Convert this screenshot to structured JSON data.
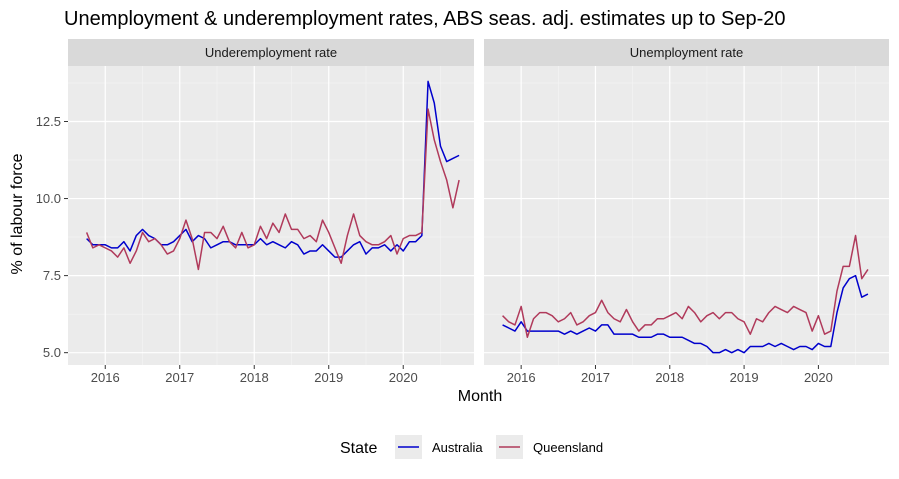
{
  "title": "Unemployment & underemployment rates, ABS seas. adj. estimates up to Sep-20",
  "chart_data": {
    "type": "line",
    "xlabel": "Month",
    "ylabel": "% of labour force",
    "x_ticks": [
      "2016",
      "2017",
      "2018",
      "2019",
      "2020"
    ],
    "y_ticks": [
      "5.0",
      "7.5",
      "10.0",
      "12.5"
    ],
    "ylim": [
      4.6,
      14.3
    ],
    "xlim": [
      2015.5,
      2020.95
    ],
    "grid": true,
    "legend": {
      "title": "State",
      "position": "bottom",
      "entries": [
        {
          "label": "Australia",
          "color": "#0000cc"
        },
        {
          "label": "Queensland",
          "color": "#b03a5b"
        }
      ]
    },
    "panels": [
      {
        "name": "Underemployment rate",
        "series": [
          {
            "name": "Australia",
            "color": "#0000cc",
            "x_start": 2015.75,
            "values": [
              8.7,
              8.5,
              8.5,
              8.5,
              8.4,
              8.4,
              8.6,
              8.3,
              8.8,
              9.0,
              8.8,
              8.7,
              8.5,
              8.5,
              8.6,
              8.8,
              9.0,
              8.6,
              8.8,
              8.7,
              8.4,
              8.5,
              8.6,
              8.6,
              8.5,
              8.5,
              8.5,
              8.5,
              8.7,
              8.5,
              8.6,
              8.5,
              8.4,
              8.6,
              8.5,
              8.2,
              8.3,
              8.3,
              8.5,
              8.3,
              8.1,
              8.1,
              8.3,
              8.5,
              8.6,
              8.2,
              8.4,
              8.4,
              8.5,
              8.3,
              8.5,
              8.3,
              8.6,
              8.6,
              8.8,
              13.8,
              13.1,
              11.7,
              11.2,
              11.3,
              11.4
            ]
          },
          {
            "name": "Queensland",
            "color": "#b03a5b",
            "x_start": 2015.75,
            "values": [
              8.9,
              8.4,
              8.5,
              8.4,
              8.3,
              8.1,
              8.4,
              7.9,
              8.3,
              8.9,
              8.6,
              8.7,
              8.5,
              8.2,
              8.3,
              8.7,
              9.3,
              8.7,
              7.7,
              8.9,
              8.9,
              8.7,
              9.1,
              8.6,
              8.4,
              8.9,
              8.4,
              8.5,
              9.1,
              8.7,
              9.2,
              8.9,
              9.5,
              9.0,
              9.0,
              8.7,
              8.8,
              8.6,
              9.3,
              8.9,
              8.4,
              7.9,
              8.8,
              9.5,
              8.8,
              8.6,
              8.5,
              8.5,
              8.6,
              8.8,
              8.2,
              8.7,
              8.8,
              8.8,
              8.9,
              12.9,
              11.9,
              11.2,
              10.6,
              9.7,
              10.6
            ]
          }
        ]
      },
      {
        "name": "Unemployment rate",
        "series": [
          {
            "name": "Australia",
            "color": "#0000cc",
            "x_start": 2015.75,
            "values": [
              5.9,
              5.8,
              5.7,
              6.0,
              5.7,
              5.7,
              5.7,
              5.7,
              5.7,
              5.7,
              5.6,
              5.7,
              5.6,
              5.7,
              5.8,
              5.7,
              5.9,
              5.9,
              5.6,
              5.6,
              5.6,
              5.6,
              5.5,
              5.5,
              5.5,
              5.6,
              5.6,
              5.5,
              5.5,
              5.5,
              5.4,
              5.3,
              5.3,
              5.2,
              5.0,
              5.0,
              5.1,
              5.0,
              5.1,
              5.0,
              5.2,
              5.2,
              5.2,
              5.3,
              5.2,
              5.3,
              5.2,
              5.1,
              5.2,
              5.2,
              5.1,
              5.3,
              5.2,
              5.2,
              6.3,
              7.1,
              7.4,
              7.5,
              6.8,
              6.9
            ]
          },
          {
            "name": "Queensland",
            "color": "#b03a5b",
            "x_start": 2015.75,
            "values": [
              6.2,
              6.0,
              5.9,
              6.5,
              5.5,
              6.1,
              6.3,
              6.3,
              6.2,
              6.0,
              6.1,
              6.3,
              5.9,
              6.0,
              6.2,
              6.3,
              6.7,
              6.3,
              6.1,
              6.0,
              6.4,
              6.0,
              5.7,
              5.9,
              5.9,
              6.1,
              6.1,
              6.2,
              6.3,
              6.1,
              6.5,
              6.3,
              6.0,
              6.2,
              6.3,
              6.1,
              6.3,
              6.3,
              6.1,
              6.0,
              5.6,
              6.1,
              6.0,
              6.3,
              6.5,
              6.4,
              6.3,
              6.5,
              6.4,
              6.3,
              5.7,
              6.2,
              5.6,
              5.7,
              7.0,
              7.8,
              7.8,
              8.8,
              7.4,
              7.7
            ]
          }
        ]
      }
    ]
  }
}
